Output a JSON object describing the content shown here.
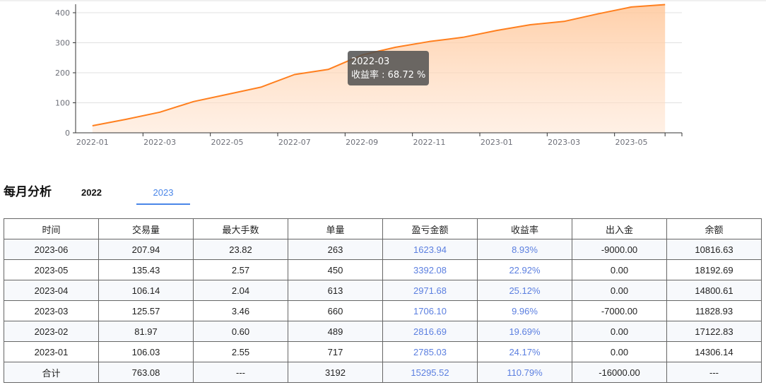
{
  "chart_data": {
    "type": "area",
    "title": "",
    "xlabel": "",
    "ylabel": "",
    "ylim": [
      0,
      400
    ],
    "yticks": [
      0,
      100,
      200,
      300,
      400
    ],
    "grid": true,
    "legend": "none",
    "categories": [
      "2022-01",
      "2022-02",
      "2022-03",
      "2022-04",
      "2022-05",
      "2022-06",
      "2022-07",
      "2022-08",
      "2022-09",
      "2022-10",
      "2022-11",
      "2022-12",
      "2023-01",
      "2023-02",
      "2023-03",
      "2023-04",
      "2023-05",
      "2023-06"
    ],
    "xtick_labels": [
      "2022-01",
      "2022-03",
      "2022-05",
      "2022-07",
      "2022-09",
      "2022-11",
      "2023-01",
      "2023-03",
      "2023-05"
    ],
    "series": [
      {
        "name": "收益率",
        "color": "#ff7f1e",
        "values": [
          23.5,
          45,
          68.72,
          104,
          128,
          152,
          194,
          211,
          259,
          285,
          304,
          318,
          341,
          360,
          371,
          396,
          419,
          427
        ]
      }
    ],
    "tooltip": {
      "title": "2022-03",
      "label": "收益率",
      "value": "68.72 %"
    }
  },
  "tooltip": {
    "title": "2022-03",
    "line": "收益率 : 68.72 %"
  },
  "section": {
    "title": "每月分析",
    "tabs": [
      {
        "label": "2022",
        "active": false
      },
      {
        "label": "2023",
        "active": true
      }
    ]
  },
  "table": {
    "headers": [
      "时间",
      "交易量",
      "最大手数",
      "单量",
      "盈亏金额",
      "收益率",
      "出入金",
      "余额"
    ],
    "rows": [
      [
        "2023-06",
        "207.94",
        "23.82",
        "263",
        "1623.94",
        "8.93%",
        "-9000.00",
        "10816.63"
      ],
      [
        "2023-05",
        "135.43",
        "2.57",
        "450",
        "3392.08",
        "22.92%",
        "0.00",
        "18192.69"
      ],
      [
        "2023-04",
        "106.14",
        "2.04",
        "613",
        "2971.68",
        "25.12%",
        "0.00",
        "14800.61"
      ],
      [
        "2023-03",
        "125.57",
        "3.46",
        "660",
        "1706.10",
        "9.96%",
        "-7000.00",
        "11828.93"
      ],
      [
        "2023-02",
        "81.97",
        "0.60",
        "489",
        "2816.69",
        "19.69%",
        "0.00",
        "17122.83"
      ],
      [
        "2023-01",
        "106.03",
        "2.55",
        "717",
        "2785.03",
        "24.17%",
        "0.00",
        "14306.14"
      ],
      [
        "合计",
        "763.08",
        "---",
        "3192",
        "15295.52",
        "110.79%",
        "-16000.00",
        "---"
      ]
    ]
  },
  "colors": {
    "line": "#ff7f1e",
    "link_blue": "#5b7fe0",
    "tab_active": "#4a86e8"
  }
}
